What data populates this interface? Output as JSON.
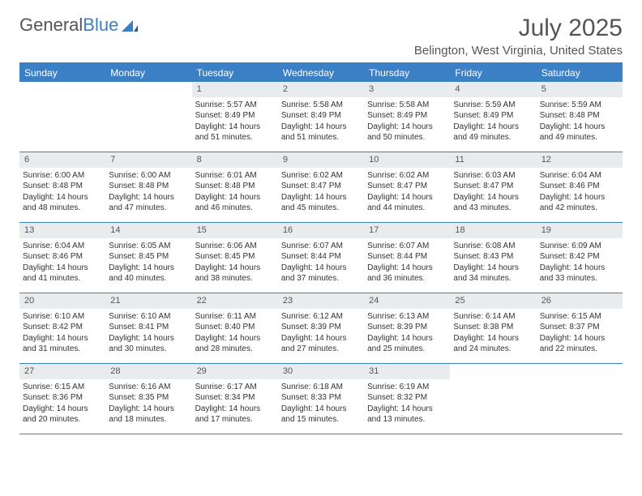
{
  "brand": {
    "text1": "General",
    "text2": "Blue"
  },
  "title": "July 2025",
  "location": "Belington, West Virginia, United States",
  "colors": {
    "accent": "#3b7fc4",
    "header_bg": "#3b7fc4",
    "header_text": "#ffffff",
    "daynum_bg": "#e8ecef",
    "text": "#333333",
    "title_text": "#555555",
    "border": "#3b7fc4"
  },
  "weekdays": [
    "Sunday",
    "Monday",
    "Tuesday",
    "Wednesday",
    "Thursday",
    "Friday",
    "Saturday"
  ],
  "weeks": [
    [
      {
        "n": "",
        "l1": "",
        "l2": "",
        "l3": "",
        "l4": ""
      },
      {
        "n": "",
        "l1": "",
        "l2": "",
        "l3": "",
        "l4": ""
      },
      {
        "n": "1",
        "l1": "Sunrise: 5:57 AM",
        "l2": "Sunset: 8:49 PM",
        "l3": "Daylight: 14 hours",
        "l4": "and 51 minutes."
      },
      {
        "n": "2",
        "l1": "Sunrise: 5:58 AM",
        "l2": "Sunset: 8:49 PM",
        "l3": "Daylight: 14 hours",
        "l4": "and 51 minutes."
      },
      {
        "n": "3",
        "l1": "Sunrise: 5:58 AM",
        "l2": "Sunset: 8:49 PM",
        "l3": "Daylight: 14 hours",
        "l4": "and 50 minutes."
      },
      {
        "n": "4",
        "l1": "Sunrise: 5:59 AM",
        "l2": "Sunset: 8:49 PM",
        "l3": "Daylight: 14 hours",
        "l4": "and 49 minutes."
      },
      {
        "n": "5",
        "l1": "Sunrise: 5:59 AM",
        "l2": "Sunset: 8:48 PM",
        "l3": "Daylight: 14 hours",
        "l4": "and 49 minutes."
      }
    ],
    [
      {
        "n": "6",
        "l1": "Sunrise: 6:00 AM",
        "l2": "Sunset: 8:48 PM",
        "l3": "Daylight: 14 hours",
        "l4": "and 48 minutes."
      },
      {
        "n": "7",
        "l1": "Sunrise: 6:00 AM",
        "l2": "Sunset: 8:48 PM",
        "l3": "Daylight: 14 hours",
        "l4": "and 47 minutes."
      },
      {
        "n": "8",
        "l1": "Sunrise: 6:01 AM",
        "l2": "Sunset: 8:48 PM",
        "l3": "Daylight: 14 hours",
        "l4": "and 46 minutes."
      },
      {
        "n": "9",
        "l1": "Sunrise: 6:02 AM",
        "l2": "Sunset: 8:47 PM",
        "l3": "Daylight: 14 hours",
        "l4": "and 45 minutes."
      },
      {
        "n": "10",
        "l1": "Sunrise: 6:02 AM",
        "l2": "Sunset: 8:47 PM",
        "l3": "Daylight: 14 hours",
        "l4": "and 44 minutes."
      },
      {
        "n": "11",
        "l1": "Sunrise: 6:03 AM",
        "l2": "Sunset: 8:47 PM",
        "l3": "Daylight: 14 hours",
        "l4": "and 43 minutes."
      },
      {
        "n": "12",
        "l1": "Sunrise: 6:04 AM",
        "l2": "Sunset: 8:46 PM",
        "l3": "Daylight: 14 hours",
        "l4": "and 42 minutes."
      }
    ],
    [
      {
        "n": "13",
        "l1": "Sunrise: 6:04 AM",
        "l2": "Sunset: 8:46 PM",
        "l3": "Daylight: 14 hours",
        "l4": "and 41 minutes."
      },
      {
        "n": "14",
        "l1": "Sunrise: 6:05 AM",
        "l2": "Sunset: 8:45 PM",
        "l3": "Daylight: 14 hours",
        "l4": "and 40 minutes."
      },
      {
        "n": "15",
        "l1": "Sunrise: 6:06 AM",
        "l2": "Sunset: 8:45 PM",
        "l3": "Daylight: 14 hours",
        "l4": "and 38 minutes."
      },
      {
        "n": "16",
        "l1": "Sunrise: 6:07 AM",
        "l2": "Sunset: 8:44 PM",
        "l3": "Daylight: 14 hours",
        "l4": "and 37 minutes."
      },
      {
        "n": "17",
        "l1": "Sunrise: 6:07 AM",
        "l2": "Sunset: 8:44 PM",
        "l3": "Daylight: 14 hours",
        "l4": "and 36 minutes."
      },
      {
        "n": "18",
        "l1": "Sunrise: 6:08 AM",
        "l2": "Sunset: 8:43 PM",
        "l3": "Daylight: 14 hours",
        "l4": "and 34 minutes."
      },
      {
        "n": "19",
        "l1": "Sunrise: 6:09 AM",
        "l2": "Sunset: 8:42 PM",
        "l3": "Daylight: 14 hours",
        "l4": "and 33 minutes."
      }
    ],
    [
      {
        "n": "20",
        "l1": "Sunrise: 6:10 AM",
        "l2": "Sunset: 8:42 PM",
        "l3": "Daylight: 14 hours",
        "l4": "and 31 minutes."
      },
      {
        "n": "21",
        "l1": "Sunrise: 6:10 AM",
        "l2": "Sunset: 8:41 PM",
        "l3": "Daylight: 14 hours",
        "l4": "and 30 minutes."
      },
      {
        "n": "22",
        "l1": "Sunrise: 6:11 AM",
        "l2": "Sunset: 8:40 PM",
        "l3": "Daylight: 14 hours",
        "l4": "and 28 minutes."
      },
      {
        "n": "23",
        "l1": "Sunrise: 6:12 AM",
        "l2": "Sunset: 8:39 PM",
        "l3": "Daylight: 14 hours",
        "l4": "and 27 minutes."
      },
      {
        "n": "24",
        "l1": "Sunrise: 6:13 AM",
        "l2": "Sunset: 8:39 PM",
        "l3": "Daylight: 14 hours",
        "l4": "and 25 minutes."
      },
      {
        "n": "25",
        "l1": "Sunrise: 6:14 AM",
        "l2": "Sunset: 8:38 PM",
        "l3": "Daylight: 14 hours",
        "l4": "and 24 minutes."
      },
      {
        "n": "26",
        "l1": "Sunrise: 6:15 AM",
        "l2": "Sunset: 8:37 PM",
        "l3": "Daylight: 14 hours",
        "l4": "and 22 minutes."
      }
    ],
    [
      {
        "n": "27",
        "l1": "Sunrise: 6:15 AM",
        "l2": "Sunset: 8:36 PM",
        "l3": "Daylight: 14 hours",
        "l4": "and 20 minutes."
      },
      {
        "n": "28",
        "l1": "Sunrise: 6:16 AM",
        "l2": "Sunset: 8:35 PM",
        "l3": "Daylight: 14 hours",
        "l4": "and 18 minutes."
      },
      {
        "n": "29",
        "l1": "Sunrise: 6:17 AM",
        "l2": "Sunset: 8:34 PM",
        "l3": "Daylight: 14 hours",
        "l4": "and 17 minutes."
      },
      {
        "n": "30",
        "l1": "Sunrise: 6:18 AM",
        "l2": "Sunset: 8:33 PM",
        "l3": "Daylight: 14 hours",
        "l4": "and 15 minutes."
      },
      {
        "n": "31",
        "l1": "Sunrise: 6:19 AM",
        "l2": "Sunset: 8:32 PM",
        "l3": "Daylight: 14 hours",
        "l4": "and 13 minutes."
      },
      {
        "n": "",
        "l1": "",
        "l2": "",
        "l3": "",
        "l4": ""
      },
      {
        "n": "",
        "l1": "",
        "l2": "",
        "l3": "",
        "l4": ""
      }
    ]
  ]
}
